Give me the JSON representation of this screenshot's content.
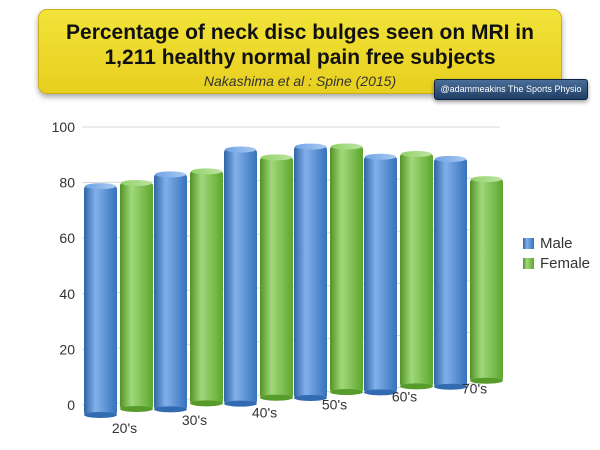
{
  "header": {
    "title_line1": "Percentage of neck disc bulges seen on MRI in",
    "title_line2": "1,211 healthy normal pain free subjects",
    "subtitle": "Nakashima et al : Spine (2015)",
    "credit": "@adammeakins   The Sports Physio"
  },
  "colors": {
    "male": "#3f86dd",
    "female": "#6dc334",
    "title_box": "#efdc30",
    "credit_box": "#2c4f7c"
  },
  "chart_data": {
    "type": "bar",
    "title": "Percentage of neck disc bulges seen on MRI in 1,211 healthy normal pain free subjects",
    "categories": [
      "20's",
      "30's",
      "40's",
      "50's",
      "60's",
      "70's"
    ],
    "series": [
      {
        "name": "Male",
        "values": [
          79,
          83,
          92,
          93,
          89,
          88
        ]
      },
      {
        "name": "Female",
        "values": [
          80,
          84,
          89,
          93,
          90,
          80
        ]
      }
    ],
    "yticks": [
      0,
      20,
      40,
      60,
      80,
      100
    ],
    "ylim": [
      0,
      100
    ],
    "grid": true,
    "legend": "right"
  }
}
